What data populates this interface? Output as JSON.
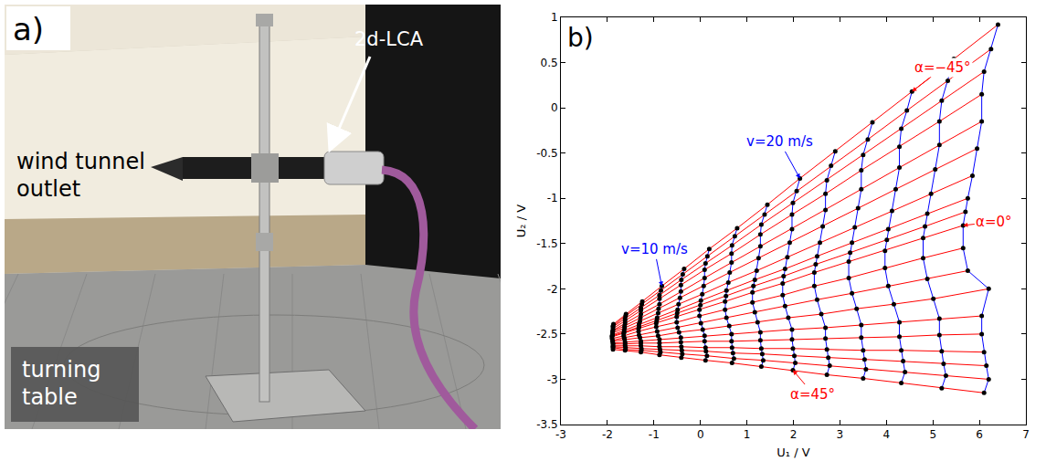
{
  "photo": {
    "label": "a)",
    "outlet": [
      "wind tunnel",
      "outlet"
    ],
    "probe": "2d-LCA",
    "table": [
      "turning",
      "table"
    ]
  },
  "chart_data": {
    "type": "scatter",
    "label": "b)",
    "x_title": "U₁ / V",
    "y_title": "U₂ / V",
    "xlim": [
      -3,
      7
    ],
    "xticks": [
      -3,
      -2,
      -1,
      0,
      1,
      2,
      3,
      4,
      5,
      6,
      7
    ],
    "ylim": [
      -3.5,
      1
    ],
    "yticks": [
      -3.5,
      -3,
      -2.5,
      -2,
      -1.5,
      -1,
      -0.5,
      0,
      0.5,
      1
    ],
    "grid": false,
    "alpha": [
      -45,
      -40,
      -35,
      -30,
      -25,
      -20,
      -15,
      -10,
      -5,
      0,
      5,
      10,
      15,
      20,
      25,
      30,
      35,
      40,
      45
    ],
    "v": [
      4,
      6,
      8,
      10,
      12,
      14,
      16,
      18,
      20,
      22,
      24,
      26,
      28,
      30
    ],
    "alpha_lines": {
      "color": "#ff0000",
      "line_style": "solid"
    },
    "v_lines": {
      "color": "#0000ff",
      "line_style": "solid"
    },
    "points": {
      "color": "#000000",
      "marker": "circle"
    },
    "U1": [
      [
        -1.87,
        -1.6,
        -1.25,
        -0.83,
        -0.35,
        0.19,
        0.79,
        1.44,
        2.14,
        2.9,
        3.7,
        4.55,
        5.45,
        6.4
      ],
      [
        -1.88,
        -1.61,
        -1.26,
        -0.85,
        -0.38,
        0.15,
        0.74,
        1.38,
        2.07,
        2.81,
        3.6,
        4.44,
        5.32,
        6.25
      ],
      [
        -1.88,
        -1.62,
        -1.28,
        -0.88,
        -0.41,
        0.11,
        0.68,
        1.31,
        1.99,
        2.72,
        3.5,
        4.32,
        5.19,
        6.1
      ],
      [
        -1.88,
        -1.62,
        -1.28,
        -0.88,
        -0.42,
        0.09,
        0.67,
        1.29,
        1.97,
        2.69,
        3.46,
        4.28,
        5.14,
        6.05
      ],
      [
        -1.88,
        -1.62,
        -1.28,
        -0.88,
        -0.42,
        0.09,
        0.67,
        1.29,
        1.97,
        2.69,
        3.46,
        4.28,
        5.14,
        6.05
      ],
      [
        -1.89,
        -1.63,
        -1.29,
        -0.9,
        -0.44,
        0.07,
        0.63,
        1.25,
        1.92,
        2.63,
        3.39,
        4.2,
        5.05,
        5.95
      ],
      [
        -1.89,
        -1.63,
        -1.3,
        -0.91,
        -0.47,
        0.04,
        0.6,
        1.21,
        1.87,
        2.57,
        3.32,
        4.12,
        4.96,
        5.85
      ],
      [
        -1.89,
        -1.64,
        -1.32,
        -0.93,
        -0.49,
        0.01,
        0.56,
        1.17,
        1.82,
        2.51,
        3.26,
        4.04,
        4.88,
        5.75
      ],
      [
        -1.9,
        -1.64,
        -1.32,
        -0.94,
        -0.5,
        0.0,
        0.55,
        1.14,
        1.79,
        2.48,
        3.22,
        4.01,
        4.83,
        5.7
      ],
      [
        -1.9,
        -1.65,
        -1.33,
        -0.95,
        -0.51,
        -0.02,
        0.53,
        1.12,
        1.77,
        2.45,
        3.19,
        3.97,
        4.79,
        5.65
      ],
      [
        -1.9,
        -1.65,
        -1.33,
        -0.95,
        -0.51,
        -0.02,
        0.53,
        1.12,
        1.77,
        2.45,
        3.19,
        3.97,
        4.79,
        5.65
      ],
      [
        -1.89,
        -1.64,
        -1.32,
        -0.93,
        -0.49,
        0.01,
        0.56,
        1.17,
        1.82,
        2.51,
        3.26,
        4.04,
        4.88,
        5.75
      ],
      [
        -1.89,
        -1.63,
        -1.3,
        -0.91,
        -0.46,
        0.05,
        0.62,
        1.23,
        1.89,
        2.6,
        3.36,
        4.16,
        5.01,
        6.2
      ],
      [
        -1.88,
        -1.62,
        -1.28,
        -0.88,
        -0.42,
        0.09,
        0.67,
        1.29,
        1.97,
        2.69,
        3.46,
        4.28,
        5.14,
        6.05
      ],
      [
        -1.88,
        -1.62,
        -1.28,
        -0.88,
        -0.42,
        0.09,
        0.67,
        1.29,
        1.97,
        2.69,
        3.46,
        4.28,
        5.14,
        6.05
      ],
      [
        -1.88,
        -1.62,
        -1.28,
        -0.88,
        -0.41,
        0.11,
        0.68,
        1.31,
        1.99,
        2.72,
        3.5,
        4.32,
        5.19,
        6.1
      ],
      [
        -1.88,
        -1.61,
        -1.27,
        -0.87,
        -0.4,
        0.12,
        0.7,
        1.33,
        2.02,
        2.75,
        3.53,
        4.36,
        5.23,
        6.15
      ],
      [
        -1.88,
        -1.61,
        -1.27,
        -0.86,
        -0.39,
        0.14,
        0.72,
        1.35,
        2.04,
        2.78,
        3.56,
        4.4,
        5.28,
        6.2
      ],
      [
        -1.88,
        -1.62,
        -1.28,
        -0.88,
        -0.41,
        0.11,
        0.68,
        1.31,
        1.99,
        2.72,
        3.5,
        4.32,
        5.19,
        6.1
      ]
    ],
    "U2": [
      [
        -2.39,
        -2.28,
        -2.14,
        -1.97,
        -1.78,
        -1.56,
        -1.33,
        -1.07,
        -0.78,
        -0.48,
        -0.16,
        0.18,
        0.54,
        0.92
      ],
      [
        -2.41,
        -2.3,
        -2.17,
        -2.02,
        -1.84,
        -1.64,
        -1.42,
        -1.18,
        -0.92,
        -0.64,
        -0.35,
        -0.03,
        0.3,
        0.65
      ],
      [
        -2.42,
        -2.33,
        -2.21,
        -2.07,
        -1.9,
        -1.72,
        -1.52,
        -1.29,
        -1.05,
        -0.8,
        -0.52,
        -0.23,
        0.08,
        0.4
      ],
      [
        -2.44,
        -2.35,
        -2.24,
        -2.11,
        -1.96,
        -1.79,
        -1.61,
        -1.4,
        -1.18,
        -0.95,
        -0.69,
        -0.43,
        -0.15,
        0.15
      ],
      [
        -2.46,
        -2.38,
        -2.28,
        -2.17,
        -2.03,
        -1.88,
        -1.71,
        -1.53,
        -1.34,
        -1.13,
        -0.9,
        -0.66,
        -0.41,
        -0.15
      ],
      [
        -2.47,
        -2.41,
        -2.32,
        -2.22,
        -2.1,
        -1.97,
        -1.82,
        -1.66,
        -1.49,
        -1.31,
        -1.11,
        -0.9,
        -0.68,
        -0.45
      ],
      [
        -2.49,
        -2.43,
        -2.36,
        -2.27,
        -2.17,
        -2.06,
        -1.93,
        -1.8,
        -1.65,
        -1.49,
        -1.32,
        -1.14,
        -0.95,
        -0.75
      ],
      [
        -2.51,
        -2.46,
        -2.39,
        -2.32,
        -2.23,
        -2.13,
        -2.02,
        -1.9,
        -1.78,
        -1.64,
        -1.49,
        -1.34,
        -1.17,
        -1.0
      ],
      [
        -2.52,
        -2.48,
        -2.42,
        -2.35,
        -2.27,
        -2.18,
        -2.08,
        -1.97,
        -1.86,
        -1.73,
        -1.6,
        -1.46,
        -1.31,
        -1.15
      ],
      [
        -2.53,
        -2.49,
        -2.44,
        -2.38,
        -2.31,
        -2.23,
        -2.14,
        -2.04,
        -1.94,
        -1.82,
        -1.7,
        -1.58,
        -1.44,
        -1.3
      ],
      [
        -2.55,
        -2.52,
        -2.47,
        -2.42,
        -2.37,
        -2.3,
        -2.23,
        -2.15,
        -2.07,
        -1.97,
        -1.88,
        -1.77,
        -1.66,
        -1.55
      ],
      [
        -2.57,
        -2.54,
        -2.51,
        -2.47,
        -2.43,
        -2.38,
        -2.32,
        -2.26,
        -2.19,
        -2.12,
        -2.05,
        -1.97,
        -1.89,
        -1.8
      ],
      [
        -2.58,
        -2.56,
        -2.54,
        -2.52,
        -2.48,
        -2.45,
        -2.41,
        -2.37,
        -2.32,
        -2.28,
        -2.22,
        -2.17,
        -2.11,
        -2.0
      ],
      [
        -2.6,
        -2.59,
        -2.58,
        -2.56,
        -2.54,
        -2.52,
        -2.5,
        -2.48,
        -2.45,
        -2.43,
        -2.4,
        -2.37,
        -2.33,
        -2.3
      ],
      [
        -2.61,
        -2.61,
        -2.6,
        -2.6,
        -2.59,
        -2.58,
        -2.58,
        -2.57,
        -2.56,
        -2.55,
        -2.54,
        -2.53,
        -2.51,
        -2.5
      ],
      [
        -2.63,
        -2.63,
        -2.63,
        -2.64,
        -2.64,
        -2.65,
        -2.65,
        -2.66,
        -2.66,
        -2.67,
        -2.68,
        -2.68,
        -2.69,
        -2.7
      ],
      [
        -2.64,
        -2.65,
        -2.66,
        -2.67,
        -2.68,
        -2.69,
        -2.71,
        -2.72,
        -2.74,
        -2.76,
        -2.78,
        -2.8,
        -2.83,
        -2.85
      ],
      [
        -2.65,
        -2.67,
        -2.68,
        -2.7,
        -2.72,
        -2.74,
        -2.77,
        -2.79,
        -2.82,
        -2.85,
        -2.89,
        -2.92,
        -2.96,
        -3.0
      ],
      [
        -2.67,
        -2.68,
        -2.7,
        -2.73,
        -2.76,
        -2.79,
        -2.82,
        -2.86,
        -2.9,
        -2.95,
        -2.99,
        -3.04,
        -3.1,
        -3.15
      ]
    ],
    "annotations": [
      {
        "text": "α=−45°",
        "alpha": -45,
        "v": 26,
        "color": "#ff0000"
      },
      {
        "text": "v=20 m/s",
        "alpha": -45,
        "v": 20,
        "color": "#0000ff"
      },
      {
        "text": "v=10 m/s",
        "alpha": -45,
        "v": 10,
        "color": "#0000ff"
      },
      {
        "text": "α=0°",
        "alpha": 0,
        "v": 30,
        "color": "#ff0000"
      },
      {
        "text": "α=45°",
        "alpha": 45,
        "v": 20,
        "color": "#ff0000"
      }
    ]
  }
}
